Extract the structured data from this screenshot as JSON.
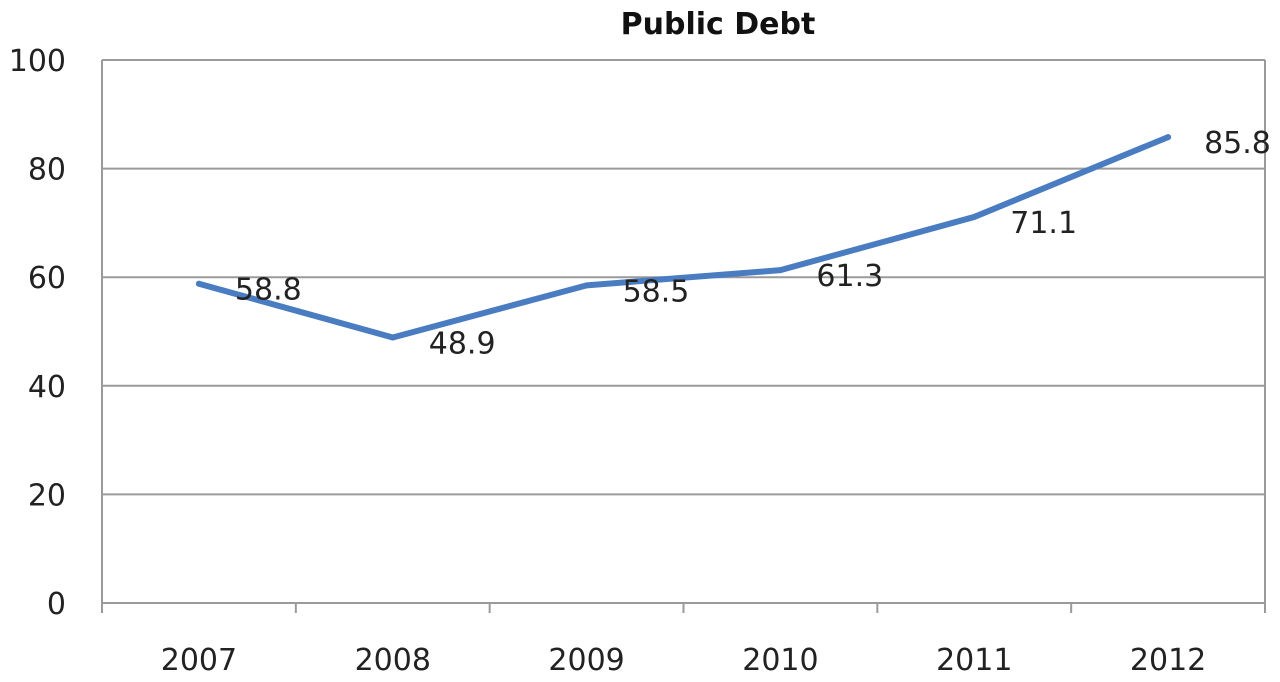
{
  "chart_data": {
    "type": "line",
    "title": "Public Debt",
    "xlabel": "",
    "ylabel": "",
    "categories": [
      "2007",
      "2008",
      "2009",
      "2010",
      "2011",
      "2012"
    ],
    "series": [
      {
        "values": [
          58.8,
          48.9,
          58.5,
          61.3,
          71.1,
          85.8
        ],
        "color": "#4a7cc1"
      }
    ],
    "data_labels": [
      "58.8",
      "48.9",
      "58.5",
      "61.3",
      "71.1",
      "85.8"
    ],
    "y_ticks": [
      "0",
      "20",
      "40",
      "60",
      "80",
      "100"
    ],
    "ylim": [
      0,
      100
    ],
    "grid": true,
    "legend": "none",
    "gridline_color": "#9a9a9a",
    "plot_border_color": "#9a9a9a"
  }
}
